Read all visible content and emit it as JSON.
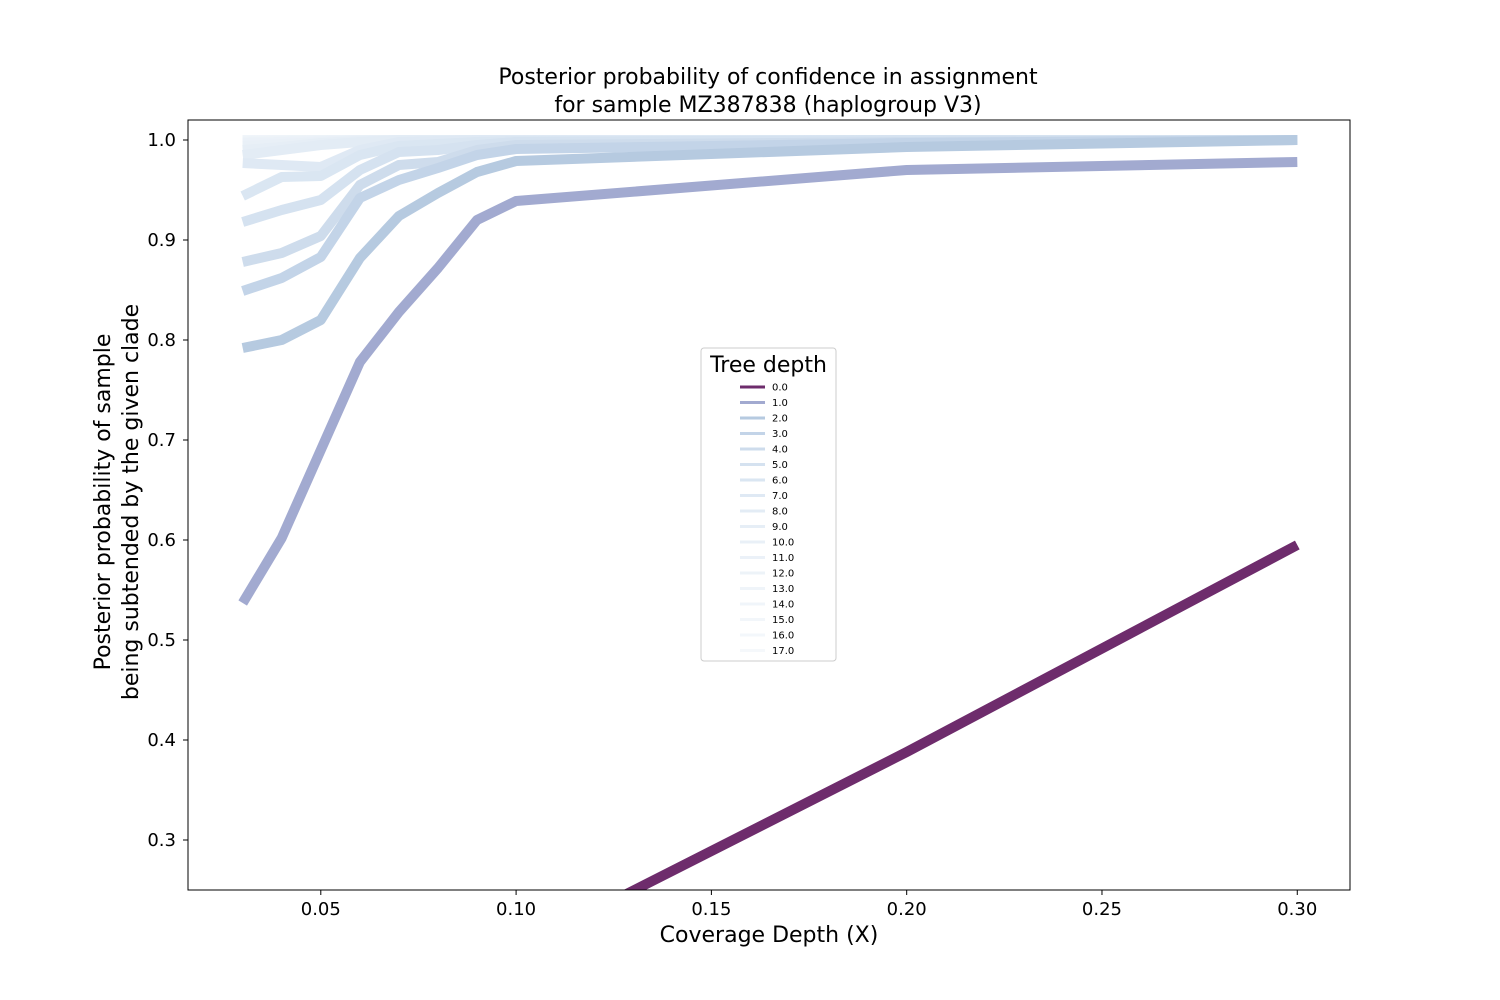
{
  "chart_data": {
    "type": "line",
    "title": "Posterior probability of confidence in assignment\nfor sample MZ387838 (haplogroup V3)",
    "xlabel": "Coverage Depth (X)",
    "ylabel": "Posterior probability of sample\nbeing subtended by the given clade",
    "xlim": [
      0.016,
      0.3135
    ],
    "ylim": [
      0.25,
      1.02
    ],
    "xticks": [
      "0.05",
      "0.10",
      "0.15",
      "0.20",
      "0.25",
      "0.30"
    ],
    "yticks": [
      "0.3",
      "0.4",
      "0.5",
      "0.6",
      "0.7",
      "0.8",
      "0.9",
      "1.0"
    ],
    "grid": false,
    "legend": {
      "title": "Tree depth",
      "placement": "center"
    },
    "x": [
      0.03,
      0.04,
      0.05,
      0.06,
      0.07,
      0.08,
      0.09,
      0.1,
      0.2,
      0.3
    ],
    "series": [
      {
        "name": "0.0",
        "color": "#6e2c6c",
        "values": [
          null,
          null,
          null,
          null,
          null,
          null,
          null,
          0.19,
          0.388,
          0.595
        ]
      },
      {
        "name": "1.0",
        "color": "#a2aad0",
        "values": [
          0.537,
          0.602,
          0.69,
          0.778,
          0.828,
          0.872,
          0.92,
          0.939,
          0.97,
          0.978
        ]
      },
      {
        "name": "2.0",
        "color": "#b6cae0",
        "values": [
          0.792,
          0.8,
          0.82,
          0.882,
          0.924,
          0.947,
          0.968,
          0.979,
          0.993,
          1.0
        ]
      },
      {
        "name": "3.0",
        "color": "#c3d4e8",
        "values": [
          0.849,
          0.862,
          0.883,
          0.942,
          0.96,
          0.972,
          0.985,
          0.991,
          0.997,
          1.0
        ]
      },
      {
        "name": "4.0",
        "color": "#cedcec",
        "values": [
          0.878,
          0.887,
          0.904,
          0.955,
          0.975,
          0.978,
          0.99,
          0.995,
          0.998,
          1.0
        ]
      },
      {
        "name": "5.0",
        "color": "#d5e2f0",
        "values": [
          0.918,
          0.93,
          0.94,
          0.97,
          0.988,
          0.99,
          0.995,
          0.998,
          1.0,
          1.0
        ]
      },
      {
        "name": "6.0",
        "color": "#dae6f2",
        "values": [
          0.944,
          0.963,
          0.964,
          0.985,
          0.994,
          0.996,
          0.998,
          0.999,
          1.0,
          1.0
        ]
      },
      {
        "name": "7.0",
        "color": "#dfe9f4",
        "values": [
          0.977,
          0.975,
          0.973,
          0.99,
          0.998,
          0.999,
          1.0,
          1.0,
          1.0,
          1.0
        ]
      },
      {
        "name": "8.0",
        "color": "#e3ecf5",
        "values": [
          0.985,
          0.99,
          0.995,
          0.998,
          1.0,
          1.0,
          1.0,
          1.0,
          1.0,
          1.0
        ]
      },
      {
        "name": "9.0",
        "color": "#e6eef6",
        "values": [
          0.99,
          0.993,
          0.997,
          0.999,
          1.0,
          1.0,
          1.0,
          1.0,
          1.0,
          1.0
        ]
      },
      {
        "name": "10.0",
        "color": "#e9f0f7",
        "values": [
          0.994,
          0.996,
          0.998,
          1.0,
          1.0,
          1.0,
          1.0,
          1.0,
          1.0,
          1.0
        ]
      },
      {
        "name": "11.0",
        "color": "#ebf1f8",
        "values": [
          0.997,
          0.998,
          0.999,
          1.0,
          1.0,
          1.0,
          1.0,
          1.0,
          1.0,
          1.0
        ]
      },
      {
        "name": "12.0",
        "color": "#edf3f8",
        "values": [
          0.998,
          0.999,
          1.0,
          1.0,
          1.0,
          1.0,
          1.0,
          1.0,
          1.0,
          1.0
        ]
      },
      {
        "name": "13.0",
        "color": "#eff4f9",
        "values": [
          0.999,
          1.0,
          1.0,
          1.0,
          1.0,
          1.0,
          1.0,
          1.0,
          1.0,
          1.0
        ]
      },
      {
        "name": "14.0",
        "color": "#f0f5fa",
        "values": [
          1.0,
          1.0,
          1.0,
          1.0,
          1.0,
          1.0,
          1.0,
          1.0,
          1.0,
          1.0
        ]
      },
      {
        "name": "15.0",
        "color": "#f2f6fa",
        "values": [
          1.0,
          1.0,
          1.0,
          1.0,
          1.0,
          1.0,
          1.0,
          1.0,
          1.0,
          1.0
        ]
      },
      {
        "name": "16.0",
        "color": "#f3f7fb",
        "values": [
          1.0,
          1.0,
          1.0,
          1.0,
          1.0,
          1.0,
          1.0,
          1.0,
          1.0,
          1.0
        ]
      },
      {
        "name": "17.0",
        "color": "#f5f8fb",
        "values": [
          1.0,
          1.0,
          1.0,
          1.0,
          1.0,
          1.0,
          1.0,
          1.0,
          1.0,
          1.0
        ]
      }
    ]
  }
}
